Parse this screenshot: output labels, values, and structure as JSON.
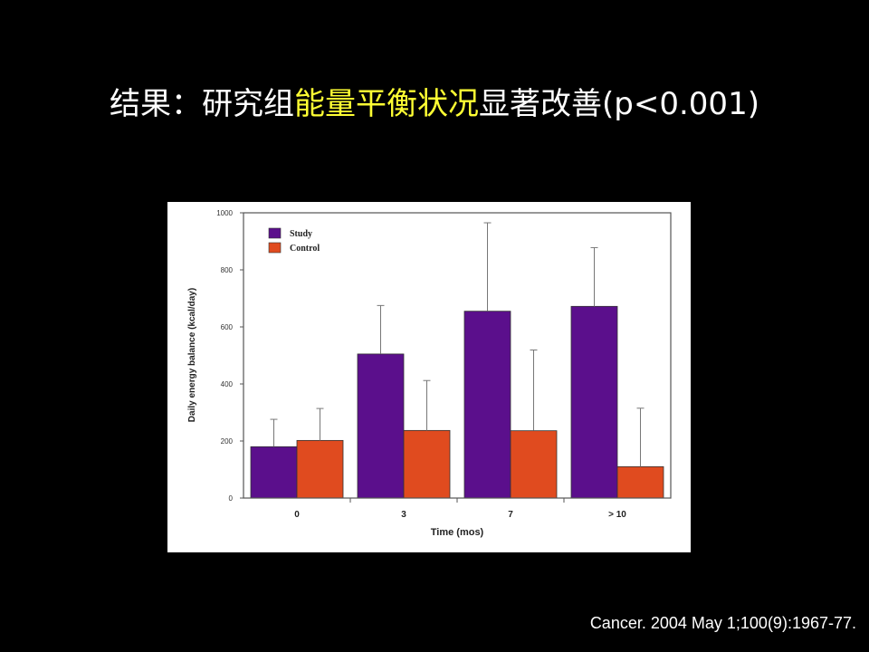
{
  "title": {
    "part1": "结果：研究组",
    "highlight": "能量平衡状况",
    "part2": "显著改善(p<0.001)"
  },
  "colors": {
    "background": "#000000",
    "title_text": "#ffffff",
    "title_highlight": "#ffff33",
    "study": "#5b0f8c",
    "control": "#e04b1f"
  },
  "chart_data": {
    "type": "bar",
    "categories": [
      "0",
      "3",
      "7",
      "> 10"
    ],
    "series": [
      {
        "name": "Study",
        "values": [
          180,
          505,
          655,
          672
        ],
        "errors": [
          96,
          170,
          310,
          206
        ],
        "color": "#5b0f8c"
      },
      {
        "name": "Control",
        "values": [
          202,
          237,
          236,
          110
        ],
        "errors": [
          112,
          175,
          283,
          205
        ],
        "color": "#e04b1f"
      }
    ],
    "xlabel": "Time (mos)",
    "ylabel": "Daily energy balance (kcal/day)",
    "ylim": [
      0,
      1000
    ],
    "yticks": [
      "0",
      "200",
      "400",
      "600",
      "800",
      "1000"
    ],
    "grid": false,
    "legend_position": "top-left",
    "error_bars": "upper"
  },
  "citation": "Cancer. 2004 May 1;100(9):1967-77."
}
